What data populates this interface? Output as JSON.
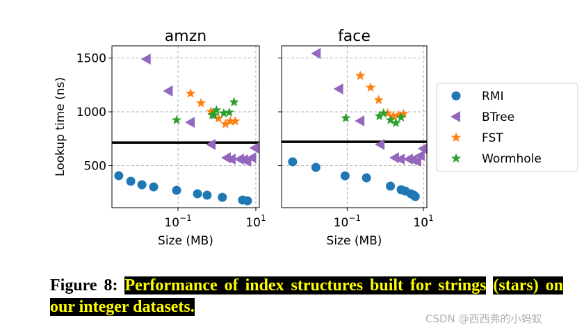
{
  "chart_data": [
    {
      "type": "scatter",
      "title": "amzn",
      "xlabel": "Size (MB)",
      "ylabel": "Lookup time (ns)",
      "xscale": "log",
      "xlim": [
        0.002,
        12.3
      ],
      "ylim": [
        110,
        1613
      ],
      "xticks": [
        {
          "value": 0.1,
          "label": "10^-1"
        },
        {
          "value": 10,
          "label": "10^1"
        }
      ],
      "yticks": [
        {
          "value": 500,
          "label": "500"
        },
        {
          "value": 1000,
          "label": "1000"
        },
        {
          "value": 1500,
          "label": "1500"
        }
      ],
      "grid": true,
      "hline": 715,
      "series": [
        {
          "name": "RMI",
          "marker": "circle",
          "color": "#1f77b4",
          "points": [
            [
              0.003,
              407
            ],
            [
              0.0061,
              355
            ],
            [
              0.0118,
              323
            ],
            [
              0.0236,
              303
            ],
            [
              0.092,
              271
            ],
            [
              0.316,
              239
            ],
            [
              0.56,
              226
            ],
            [
              1.38,
              206
            ],
            [
              4.57,
              181
            ],
            [
              6.1,
              174
            ]
          ]
        },
        {
          "name": "BTree",
          "marker": "triangle-left",
          "color": "#9467bd",
          "points": [
            [
              0.0155,
              1490
            ],
            [
              0.057,
              1194
            ],
            [
              0.21,
              903
            ],
            [
              0.72,
              697
            ],
            [
              1.78,
              574
            ],
            [
              2.36,
              561
            ],
            [
              3.85,
              561
            ],
            [
              4.9,
              555
            ],
            [
              6.0,
              542
            ],
            [
              8.0,
              574
            ],
            [
              9.4,
              665
            ]
          ]
        },
        {
          "name": "FST",
          "marker": "star",
          "color": "#ff7f0e",
          "points": [
            [
              0.21,
              1171
            ],
            [
              0.39,
              1081
            ],
            [
              0.7,
              1003
            ],
            [
              1.1,
              939
            ],
            [
              1.66,
              887
            ],
            [
              2.21,
              913
            ],
            [
              2.95,
              913
            ]
          ]
        },
        {
          "name": "Wormhole",
          "marker": "star",
          "color": "#2ca02c",
          "points": [
            [
              0.092,
              923
            ],
            [
              0.76,
              971
            ],
            [
              0.84,
              968
            ],
            [
              0.97,
              1016
            ],
            [
              1.5,
              987
            ],
            [
              2.08,
              994
            ],
            [
              2.76,
              1090
            ]
          ]
        }
      ]
    },
    {
      "type": "scatter",
      "title": "face",
      "xlabel": "Size (MB)",
      "ylabel": "",
      "xscale": "log",
      "xlim": [
        0.0019,
        12.3
      ],
      "ylim": [
        110,
        1613
      ],
      "xticks": [
        {
          "value": 0.1,
          "label": "10^-1"
        },
        {
          "value": 10,
          "label": "10^1"
        }
      ],
      "yticks": [
        {
          "value": 500,
          "label": ""
        },
        {
          "value": 1000,
          "label": ""
        },
        {
          "value": 1500,
          "label": ""
        }
      ],
      "grid": true,
      "hline": 722,
      "series": [
        {
          "name": "RMI",
          "marker": "circle",
          "color": "#1f77b4",
          "points": [
            [
              0.0037,
              536
            ],
            [
              0.0151,
              484
            ],
            [
              0.088,
              406
            ],
            [
              0.32,
              387
            ],
            [
              1.36,
              310
            ],
            [
              2.6,
              277
            ],
            [
              3.35,
              264
            ],
            [
              4.7,
              239
            ],
            [
              5.6,
              226
            ],
            [
              6.1,
              213
            ]
          ]
        },
        {
          "name": "BTree",
          "marker": "triangle-left",
          "color": "#9467bd",
          "points": [
            [
              0.0157,
              1542
            ],
            [
              0.061,
              1213
            ],
            [
              0.22,
              916
            ],
            [
              0.74,
              697
            ],
            [
              1.78,
              574
            ],
            [
              2.5,
              561
            ],
            [
              4.1,
              561
            ],
            [
              5.3,
              555
            ],
            [
              6.8,
              542
            ],
            [
              8.4,
              594
            ],
            [
              9.9,
              658
            ]
          ]
        },
        {
          "name": "FST",
          "marker": "star",
          "color": "#ff7f0e",
          "points": [
            [
              0.22,
              1335
            ],
            [
              0.41,
              1226
            ],
            [
              0.67,
              1110
            ],
            [
              1.15,
              987
            ],
            [
              1.6,
              961
            ],
            [
              2.2,
              968
            ],
            [
              3.0,
              981
            ]
          ]
        },
        {
          "name": "Wormhole",
          "marker": "star",
          "color": "#2ca02c",
          "points": [
            [
              0.092,
              942
            ],
            [
              0.7,
              961
            ],
            [
              0.9,
              987
            ],
            [
              1.36,
              923
            ],
            [
              1.9,
              897
            ],
            [
              2.6,
              948
            ]
          ]
        }
      ]
    }
  ],
  "legend": {
    "placement": "right",
    "entries": [
      {
        "label": "RMI",
        "marker": "circle",
        "color": "#1f77b4"
      },
      {
        "label": "BTree",
        "marker": "triangle-left",
        "color": "#9467bd"
      },
      {
        "label": "FST",
        "marker": "star",
        "color": "#ff7f0e"
      },
      {
        "label": "Wormhole",
        "marker": "star",
        "color": "#2ca02c"
      }
    ]
  },
  "caption": {
    "prefix": "Figure 8:",
    "highlight_line1": "Performance of index structures built for strings",
    "highlight_line2": "(stars) on our integer datasets."
  },
  "watermark": "CSDN @西西弗的小蚂蚁"
}
